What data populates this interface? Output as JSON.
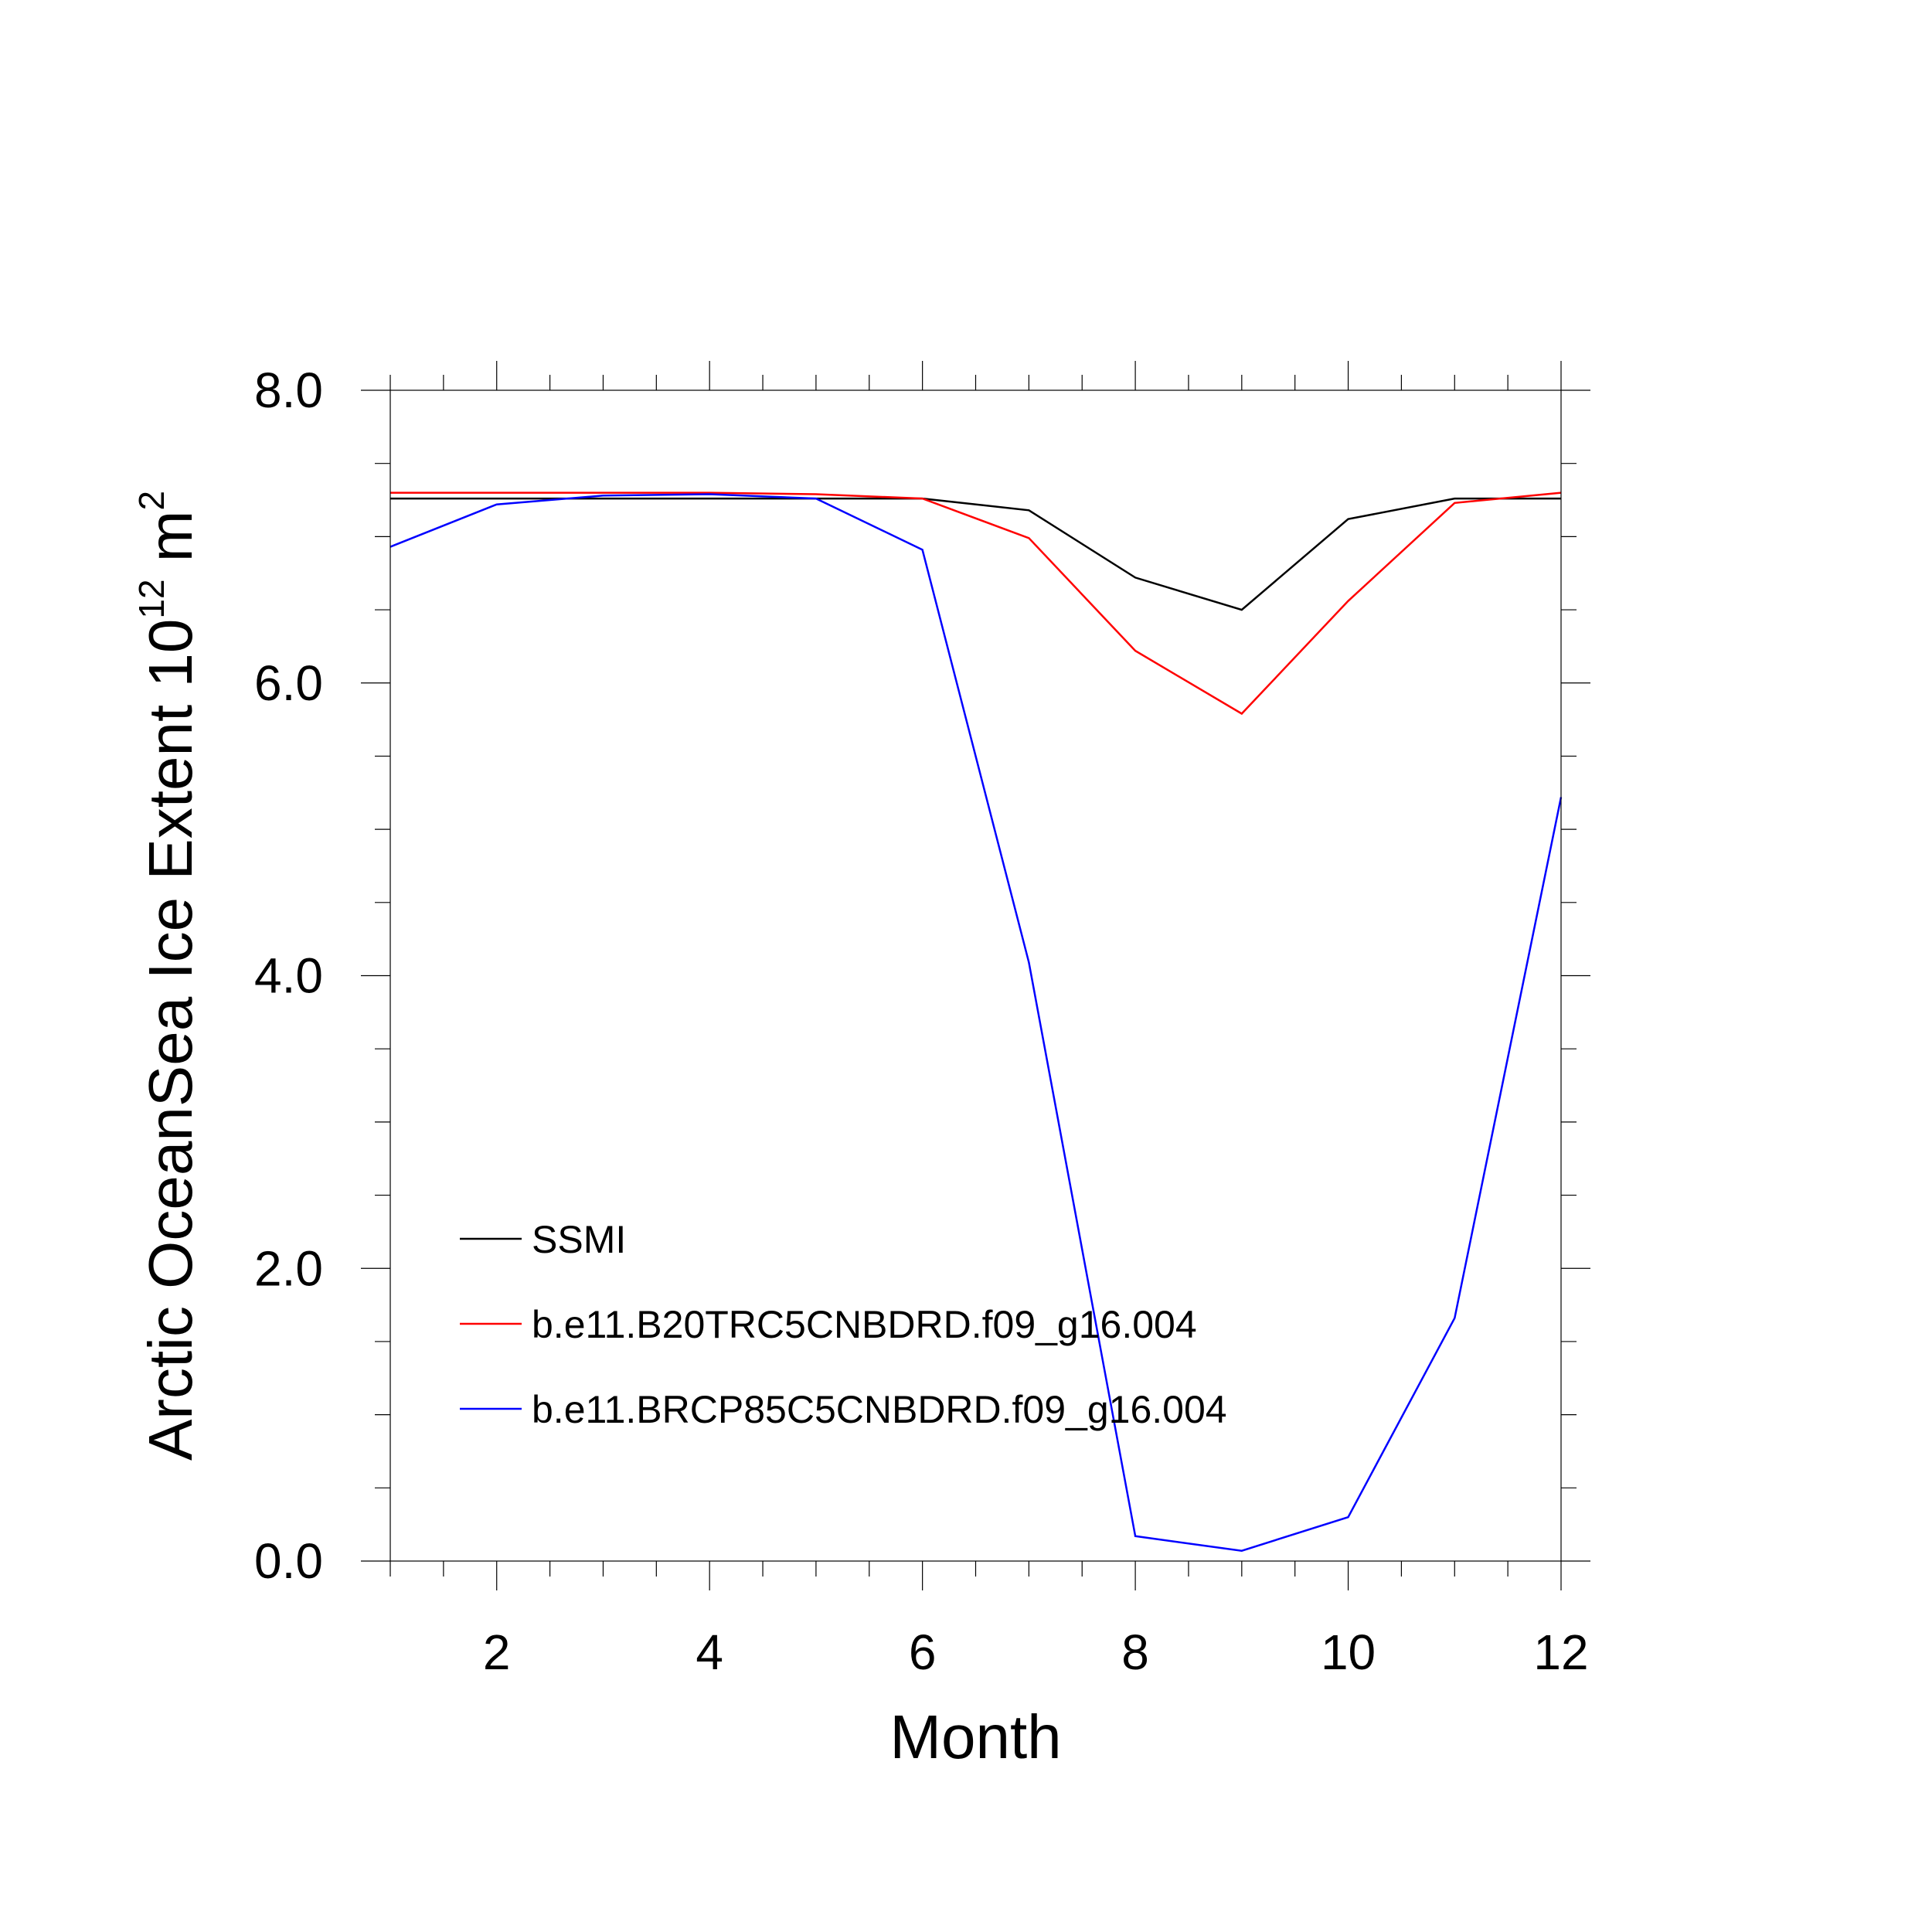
{
  "chart_data": {
    "type": "line",
    "xlabel": "Month",
    "ylabel": "Arctic OceanSea Ice Extent 10",
    "ylabel_exp": "12",
    "ylabel_unit": " m",
    "ylabel_unit_exp": "2",
    "xlim": [
      1,
      12
    ],
    "ylim": [
      0,
      8
    ],
    "x_ticks": [
      2,
      4,
      6,
      8,
      10,
      12
    ],
    "y_ticks": [
      0,
      2,
      4,
      6,
      8
    ],
    "x_tick_labels": [
      "2",
      "4",
      "6",
      "8",
      "10",
      "12"
    ],
    "y_tick_labels": [
      "0.0",
      "2.0",
      "4.0",
      "6.0",
      "8.0"
    ],
    "x": [
      1,
      2,
      3,
      4,
      5,
      6,
      7,
      8,
      9,
      10,
      11,
      12
    ],
    "grid": false,
    "legend_position": "lower-left",
    "series": [
      {
        "name": "SSMI",
        "color": "#000000",
        "values": [
          7.26,
          7.26,
          7.26,
          7.26,
          7.26,
          7.26,
          7.18,
          6.72,
          6.5,
          7.12,
          7.26,
          7.26
        ]
      },
      {
        "name": "b.e11.B20TRC5CNBDRD.f09_g16.004",
        "color": "#ff0000",
        "values": [
          7.3,
          7.3,
          7.3,
          7.3,
          7.29,
          7.26,
          6.99,
          6.22,
          5.79,
          6.56,
          7.23,
          7.3
        ]
      },
      {
        "name": "b.e11.BRCP85C5CNBDRD.f09_g16.004",
        "color": "#0000ff",
        "values": [
          6.93,
          7.22,
          7.28,
          7.29,
          7.26,
          6.91,
          4.09,
          0.17,
          0.07,
          0.3,
          1.66,
          5.22
        ]
      }
    ]
  }
}
